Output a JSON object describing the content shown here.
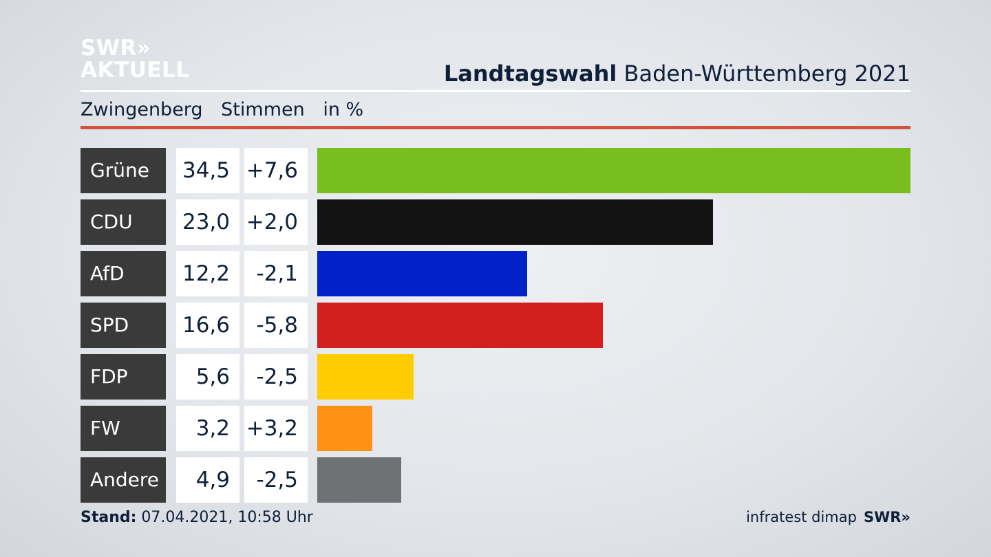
{
  "header": {
    "logo_line1": "SWR»",
    "logo_line2": "AKTUELL",
    "title_bold": "Landtagswahl",
    "title_rest": " Baden-Württemberg 2021",
    "subhead_place": "Zwingenberg",
    "subhead_stimmen": "Stimmen",
    "subhead_unit": "in %"
  },
  "colors": {
    "accent_rule": "#d2523c",
    "label_bg": "#3a3a3a"
  },
  "chart_data": {
    "type": "bar",
    "orientation": "horizontal",
    "categories": [
      "Grüne",
      "CDU",
      "AfD",
      "SPD",
      "FDP",
      "FW",
      "Andere"
    ],
    "values": [
      34.5,
      23.0,
      12.2,
      16.6,
      5.6,
      3.2,
      4.9
    ],
    "value_labels": [
      "34,5",
      "23,0",
      "12,2",
      "16,6",
      "5,6",
      "3,2",
      "4,9"
    ],
    "diff_labels": [
      "+7,6",
      "+2,0",
      "-2,1",
      "-5,8",
      "-2,5",
      "+3,2",
      "-2,5"
    ],
    "diffs": [
      7.6,
      2.0,
      -2.1,
      -5.8,
      -2.5,
      3.2,
      -2.5
    ],
    "bar_colors": [
      "#78be1e",
      "#121212",
      "#0022c8",
      "#d41f1f",
      "#ffcc00",
      "#ff9214",
      "#707173"
    ],
    "xlim": [
      0,
      34.5
    ],
    "grid": false,
    "legend": "none"
  },
  "footer": {
    "stand_label": "Stand:",
    "stand_value": " 07.04.2021, 10:58 Uhr",
    "source": "infratest dimap",
    "source_logo": "SWR»"
  }
}
